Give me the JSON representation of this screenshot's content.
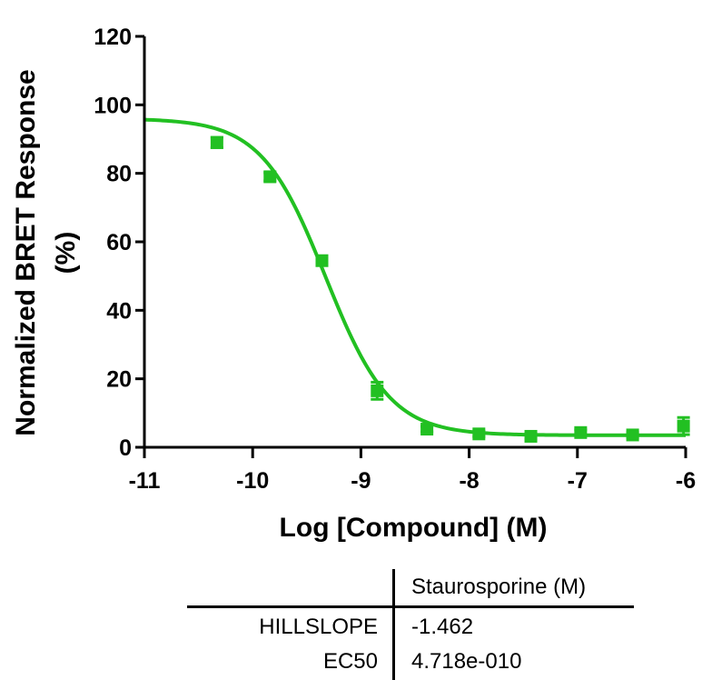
{
  "chart_data": {
    "type": "scatter",
    "xlabel": "Log [Compound] (M)",
    "ylabel_lines": [
      "Normalized BRET Response",
      "(%)"
    ],
    "xlim": [
      -11,
      -6
    ],
    "ylim": [
      0,
      120
    ],
    "x_ticks": [
      -11,
      -10,
      -9,
      -8,
      -7,
      -6
    ],
    "y_ticks": [
      0,
      20,
      40,
      60,
      80,
      100,
      120
    ],
    "grid": false,
    "color": "#22c022",
    "series": [
      {
        "points": [
          {
            "x": -10.33,
            "y": 89,
            "err": 1.5
          },
          {
            "x": -9.84,
            "y": 79,
            "err": 1.2
          },
          {
            "x": -9.36,
            "y": 54.5,
            "err": 1.0
          },
          {
            "x": -8.85,
            "y": 16.5,
            "err": 2.5
          },
          {
            "x": -8.39,
            "y": 5.3,
            "err": 0.8
          },
          {
            "x": -7.91,
            "y": 3.9,
            "err": 0.8
          },
          {
            "x": -7.43,
            "y": 3.2,
            "err": 0.8
          },
          {
            "x": -6.97,
            "y": 4.3,
            "err": 0.8
          },
          {
            "x": -6.49,
            "y": 3.6,
            "err": 0.8
          },
          {
            "x": -6.02,
            "y": 6.2,
            "err": 2.5
          }
        ],
        "fit": {
          "model": "sigmoidal dose-response (variable slope)",
          "top": 96,
          "bottom": 3.5,
          "logEC50": -9.326,
          "hillslope": -1.462
        }
      }
    ]
  },
  "results_table": {
    "column_header": "Staurosporine (M)",
    "rows": [
      {
        "label": "HILLSLOPE",
        "value": "-1.462"
      },
      {
        "label": "EC50",
        "value": "4.718e-010"
      }
    ]
  }
}
